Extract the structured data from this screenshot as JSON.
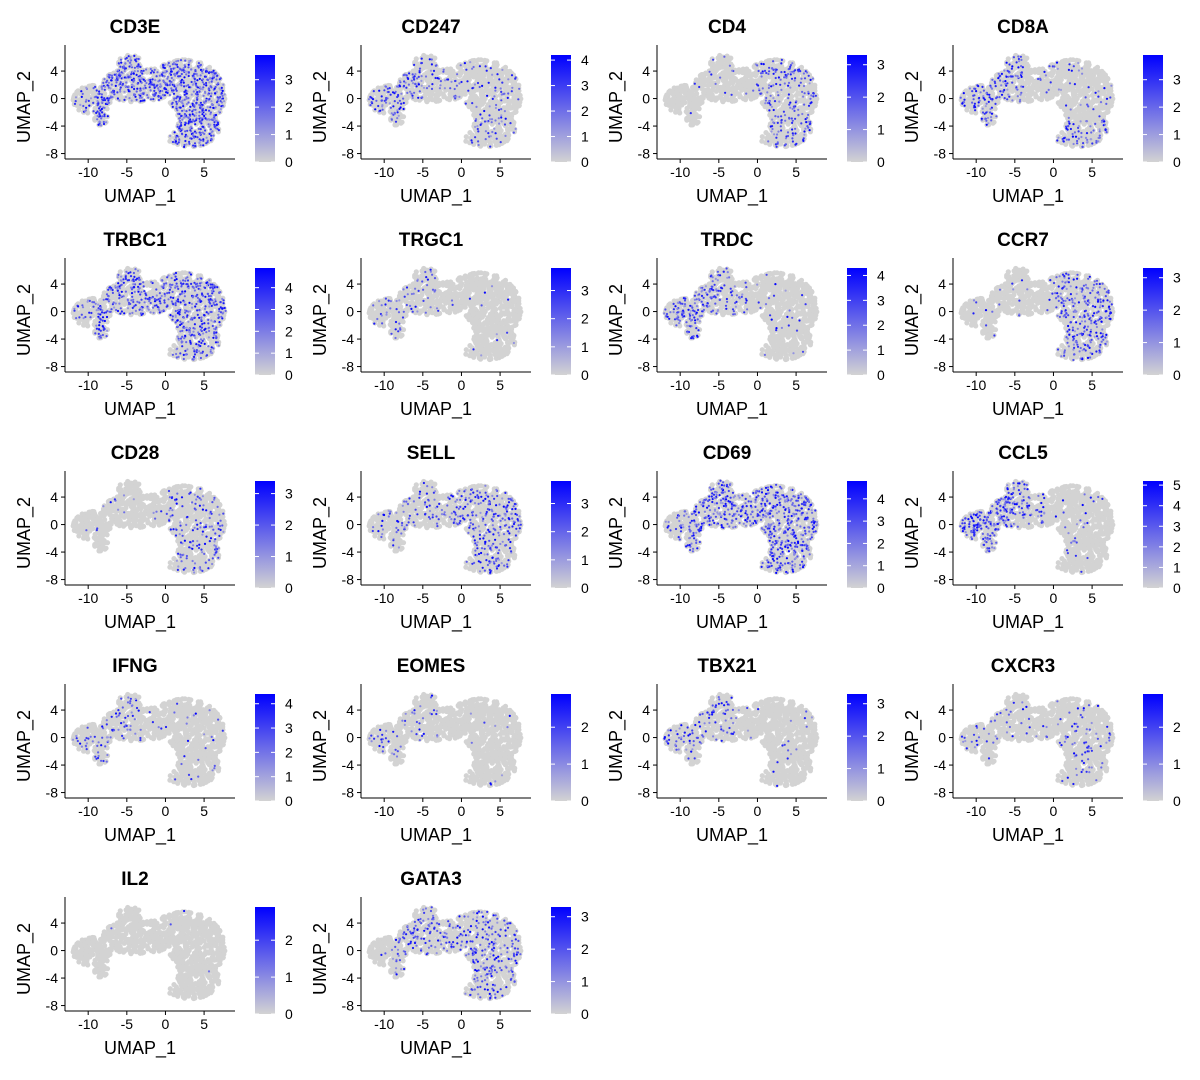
{
  "chart_data": {
    "type": "scatter",
    "layout": "grid",
    "columns": 4,
    "xlabel": "UMAP_1",
    "ylabel": "UMAP_2",
    "xlim": [
      -13,
      9
    ],
    "ylim": [
      -8.5,
      7.5
    ],
    "x_ticks": [
      -10,
      -5,
      0,
      5
    ],
    "y_ticks": [
      4,
      0,
      -4,
      -8
    ],
    "color_low": "#d3d3d3",
    "color_high": "#0000ff",
    "panels": [
      {
        "gene": "CD3E",
        "max": 3.9,
        "legend_ticks": [
          0,
          1,
          2,
          3
        ],
        "pattern": "broad",
        "density": 0.85
      },
      {
        "gene": "CD247",
        "max": 4.2,
        "legend_ticks": [
          0,
          1,
          2,
          3,
          4
        ],
        "pattern": "left",
        "density": 0.45
      },
      {
        "gene": "CD4",
        "max": 3.3,
        "legend_ticks": [
          0,
          1,
          2,
          3
        ],
        "pattern": "right",
        "density": 0.3
      },
      {
        "gene": "CD8A",
        "max": 3.9,
        "legend_ticks": [
          0,
          1,
          2,
          3
        ],
        "pattern": "left-bottom",
        "density": 0.45
      },
      {
        "gene": "TRBC1",
        "max": 4.9,
        "legend_ticks": [
          0,
          1,
          2,
          3,
          4
        ],
        "pattern": "broad",
        "density": 0.55
      },
      {
        "gene": "TRGC1",
        "max": 3.8,
        "legend_ticks": [
          0,
          1,
          2,
          3
        ],
        "pattern": "left-sparse",
        "density": 0.2
      },
      {
        "gene": "TRDC",
        "max": 4.3,
        "legend_ticks": [
          0,
          1,
          2,
          3,
          4
        ],
        "pattern": "far-left",
        "density": 0.6
      },
      {
        "gene": "CCR7",
        "max": 3.3,
        "legend_ticks": [
          0,
          1,
          2,
          3
        ],
        "pattern": "right",
        "density": 0.4
      },
      {
        "gene": "CD28",
        "max": 3.4,
        "legend_ticks": [
          0,
          1,
          2,
          3
        ],
        "pattern": "right",
        "density": 0.25
      },
      {
        "gene": "SELL",
        "max": 3.8,
        "legend_ticks": [
          0,
          1,
          2,
          3
        ],
        "pattern": "right-mixed",
        "density": 0.35
      },
      {
        "gene": "CD69",
        "max": 4.8,
        "legend_ticks": [
          0,
          1,
          2,
          3,
          4
        ],
        "pattern": "broad",
        "density": 0.6
      },
      {
        "gene": "CCL5",
        "max": 5.2,
        "legend_ticks": [
          0,
          1,
          2,
          3,
          4,
          5
        ],
        "pattern": "far-left",
        "density": 0.85
      },
      {
        "gene": "IFNG",
        "max": 4.4,
        "legend_ticks": [
          0,
          1,
          2,
          3,
          4
        ],
        "pattern": "left-sparse",
        "density": 0.25
      },
      {
        "gene": "EOMES",
        "max": 2.9,
        "legend_ticks": [
          0,
          1,
          2
        ],
        "pattern": "left-sparse",
        "density": 0.15
      },
      {
        "gene": "TBX21",
        "max": 3.3,
        "legend_ticks": [
          0,
          1,
          2,
          3
        ],
        "pattern": "left-sparse",
        "density": 0.25
      },
      {
        "gene": "CXCR3",
        "max": 2.9,
        "legend_ticks": [
          0,
          1,
          2
        ],
        "pattern": "sparse",
        "density": 0.1
      },
      {
        "gene": "IL2",
        "max": 2.9,
        "legend_ticks": [
          0,
          1,
          2
        ],
        "pattern": "none",
        "density": 0.02
      },
      {
        "gene": "GATA3",
        "max": 3.3,
        "legend_ticks": [
          0,
          1,
          2,
          3
        ],
        "pattern": "broad",
        "density": 0.3
      }
    ]
  }
}
